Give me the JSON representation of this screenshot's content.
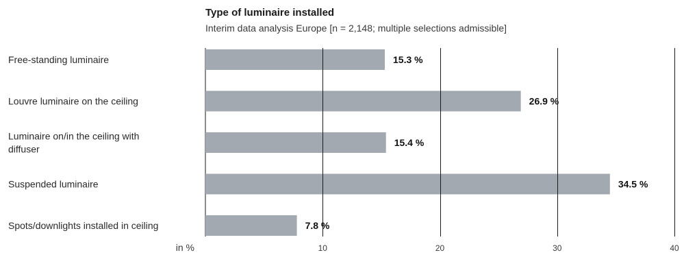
{
  "chart_data": {
    "type": "bar",
    "orientation": "horizontal",
    "title": "Type of luminaire installed",
    "subtitle": "Interim data analysis Europe [n = 2,148; multiple selections admissible]",
    "xlabel": "in %",
    "categories": [
      [
        "Free-standing luminaire"
      ],
      [
        "Louvre luminaire on the ceiling"
      ],
      [
        "Luminaire on/in the ceiling with",
        "diffuser"
      ],
      [
        "Suspended luminaire"
      ],
      [
        "Spots/downlights installed in ceiling"
      ]
    ],
    "values": [
      15.3,
      26.9,
      15.4,
      34.5,
      7.8
    ],
    "value_labels": [
      "15.3 %",
      "26.9 %",
      "15.4 %",
      "34.5 %",
      "7.8 %"
    ],
    "xlim": [
      0,
      40
    ],
    "ticks": [
      10,
      20,
      30,
      40
    ],
    "tick_labels": [
      "10",
      "20",
      "30",
      "40"
    ],
    "grid": true,
    "bar_color": "#a3a9b0",
    "grid_color": "#1a1a1a"
  }
}
